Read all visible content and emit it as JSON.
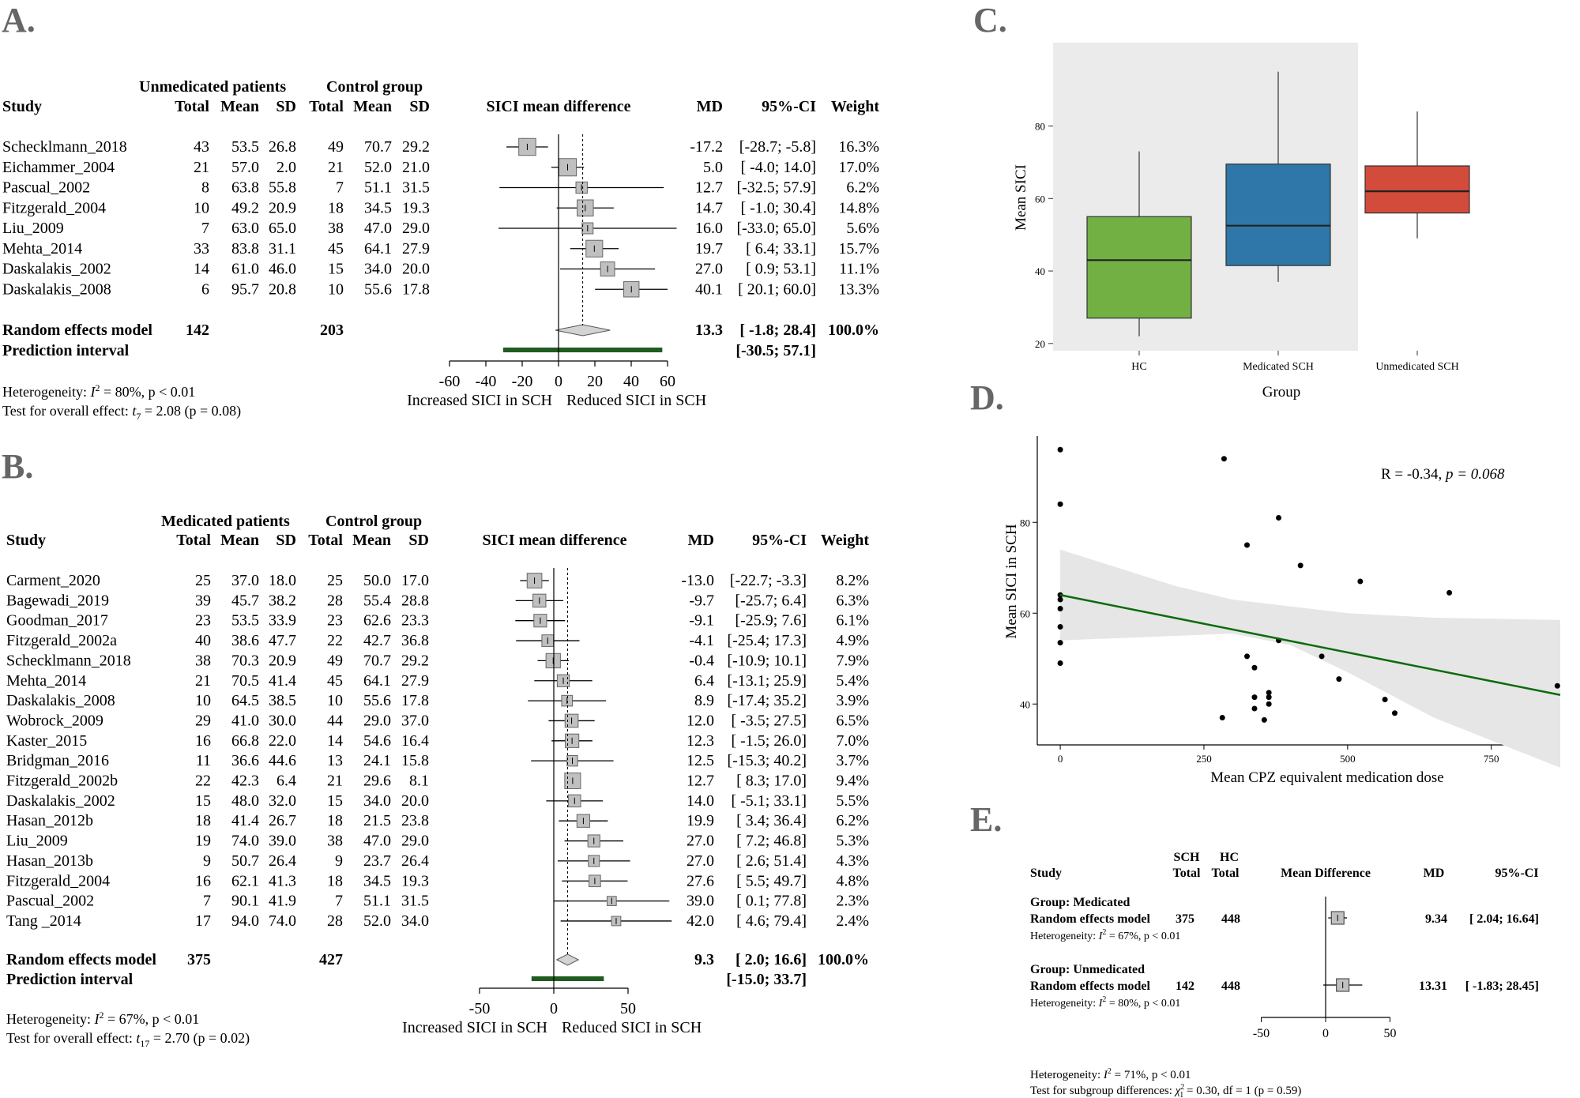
{
  "panel_labels": {
    "a": "A.",
    "b": "B.",
    "c": "C.",
    "d": "D.",
    "e": "E."
  },
  "colors": {
    "square": "#c0c0c0",
    "diamond": "#d3d3d3",
    "pred": "#1f5c1f",
    "hc": "#72b043",
    "medicated": "#2e77a8",
    "unmedicated": "#d24b3b",
    "fit": "#0d6b0d",
    "band": "#e6e6e6",
    "panel_bg": "#ebebeb"
  },
  "chart_data": [
    {
      "type": "forest",
      "panel": "A",
      "header": {
        "group1": "Unmedicated patients",
        "group2": "Control group",
        "study": "Study",
        "total": "Total",
        "mean": "Mean",
        "sd": "SD",
        "plot_title": "SICI mean difference",
        "md": "MD",
        "ci": "95%-CI",
        "weight": "Weight"
      },
      "xlim": [
        -60,
        60
      ],
      "ticks": [
        -60,
        -40,
        -20,
        0,
        20,
        40,
        60
      ],
      "xlabel_left": "Increased SICI in SCH",
      "xlabel_right": "Reduced SICI in SCH",
      "pooled_md": 13.3,
      "studies": [
        {
          "name": "Schecklmann_2018",
          "n1": "43",
          "m1": "53.5",
          "sd1": "26.8",
          "n2": "49",
          "m2": "70.7",
          "sd2": "29.2",
          "md_text": "-17.2",
          "ci_text": "[-28.7; -5.8]",
          "w_text": "16.3%",
          "md": -17.2,
          "lo": -28.7,
          "hi": -5.8,
          "w": 16.3
        },
        {
          "name": "Eichammer_2004",
          "n1": "21",
          "m1": "57.0",
          "sd1": "2.0",
          "n2": "21",
          "m2": "52.0",
          "sd2": "21.0",
          "md_text": "5.0",
          "ci_text": "[ -4.0; 14.0]",
          "w_text": "17.0%",
          "md": 5.0,
          "lo": -4.0,
          "hi": 14.0,
          "w": 17.0
        },
        {
          "name": "Pascual_2002",
          "n1": "8",
          "m1": "63.8",
          "sd1": "55.8",
          "n2": "7",
          "m2": "51.1",
          "sd2": "31.5",
          "md_text": "12.7",
          "ci_text": "[-32.5; 57.9]",
          "w_text": "6.2%",
          "md": 12.7,
          "lo": -32.5,
          "hi": 57.9,
          "w": 6.2
        },
        {
          "name": "Fitzgerald_2004",
          "n1": "10",
          "m1": "49.2",
          "sd1": "20.9",
          "n2": "18",
          "m2": "34.5",
          "sd2": "19.3",
          "md_text": "14.7",
          "ci_text": "[ -1.0; 30.4]",
          "w_text": "14.8%",
          "md": 14.7,
          "lo": -1.0,
          "hi": 30.4,
          "w": 14.8
        },
        {
          "name": "Liu_2009",
          "n1": "7",
          "m1": "63.0",
          "sd1": "65.0",
          "n2": "38",
          "m2": "47.0",
          "sd2": "29.0",
          "md_text": "16.0",
          "ci_text": "[-33.0; 65.0]",
          "w_text": "5.6%",
          "md": 16.0,
          "lo": -33.0,
          "hi": 65.0,
          "w": 5.6
        },
        {
          "name": "Mehta_2014",
          "n1": "33",
          "m1": "83.8",
          "sd1": "31.1",
          "n2": "45",
          "m2": "64.1",
          "sd2": "27.9",
          "md_text": "19.7",
          "ci_text": "[  6.4; 33.1]",
          "w_text": "15.7%",
          "md": 19.7,
          "lo": 6.4,
          "hi": 33.1,
          "w": 15.7
        },
        {
          "name": "Daskalakis_2002",
          "n1": "14",
          "m1": "61.0",
          "sd1": "46.0",
          "n2": "15",
          "m2": "34.0",
          "sd2": "20.0",
          "md_text": "27.0",
          "ci_text": "[  0.9; 53.1]",
          "w_text": "11.1%",
          "md": 27.0,
          "lo": 0.9,
          "hi": 53.1,
          "w": 11.1
        },
        {
          "name": "Daskalakis_2008",
          "n1": "6",
          "m1": "95.7",
          "sd1": "20.8",
          "n2": "10",
          "m2": "55.6",
          "sd2": "17.8",
          "md_text": "40.1",
          "ci_text": "[ 20.1; 60.0]",
          "w_text": "13.3%",
          "md": 40.1,
          "lo": 20.1,
          "hi": 60.0,
          "w": 13.3
        }
      ],
      "summary": {
        "label": "Random effects model",
        "n1": "142",
        "n2": "203",
        "md_text": "13.3",
        "ci_text": "[ -1.8; 28.4]",
        "w_text": "100.0%",
        "md": 13.3,
        "lo": -1.8,
        "hi": 28.4
      },
      "prediction": {
        "label": "Prediction interval",
        "ci_text": "[-30.5; 57.1]",
        "lo": -30.5,
        "hi": 57.1
      },
      "heterogeneity_prefix": "Heterogeneity: ",
      "heterogeneity_rest": " = 80%, p < 0.01",
      "overall_prefix": "Test for overall effect: ",
      "overall_rest": " = 2.08 (p = 0.08)"
    },
    {
      "type": "forest",
      "panel": "B",
      "header": {
        "group1": "Medicated patients",
        "group2": "Control group",
        "study": "Study",
        "total": "Total",
        "mean": "Mean",
        "sd": "SD",
        "plot_title": "SICI mean difference",
        "md": "MD",
        "ci": "95%-CI",
        "weight": "Weight"
      },
      "xlim": [
        -50,
        50
      ],
      "ticks": [
        -50,
        0,
        50
      ],
      "xlabel_left": "Increased SICI in SCH",
      "xlabel_right": "Reduced SICI in SCH",
      "pooled_md": 9.3,
      "studies": [
        {
          "name": "Carment_2020",
          "n1": "25",
          "m1": "37.0",
          "sd1": "18.0",
          "n2": "25",
          "m2": "50.0",
          "sd2": "17.0",
          "md_text": "-13.0",
          "ci_text": "[-22.7; -3.3]",
          "w_text": "8.2%",
          "md": -13.0,
          "lo": -22.7,
          "hi": -3.3,
          "w": 8.2
        },
        {
          "name": "Bagewadi_2019",
          "n1": "39",
          "m1": "45.7",
          "sd1": "38.2",
          "n2": "28",
          "m2": "55.4",
          "sd2": "28.8",
          "md_text": "-9.7",
          "ci_text": "[-25.7;  6.4]",
          "w_text": "6.3%",
          "md": -9.7,
          "lo": -25.7,
          "hi": 6.4,
          "w": 6.3
        },
        {
          "name": "Goodman_2017",
          "n1": "23",
          "m1": "53.5",
          "sd1": "33.9",
          "n2": "23",
          "m2": "62.6",
          "sd2": "23.3",
          "md_text": "-9.1",
          "ci_text": "[-25.9;  7.6]",
          "w_text": "6.1%",
          "md": -9.1,
          "lo": -25.9,
          "hi": 7.6,
          "w": 6.1
        },
        {
          "name": "Fitzgerald_2002a",
          "n1": "40",
          "m1": "38.6",
          "sd1": "47.7",
          "n2": "22",
          "m2": "42.7",
          "sd2": "36.8",
          "md_text": "-4.1",
          "ci_text": "[-25.4; 17.3]",
          "w_text": "4.9%",
          "md": -4.1,
          "lo": -25.4,
          "hi": 17.3,
          "w": 4.9
        },
        {
          "name": "Schecklmann_2018",
          "n1": "38",
          "m1": "70.3",
          "sd1": "20.9",
          "n2": "49",
          "m2": "70.7",
          "sd2": "29.2",
          "md_text": "-0.4",
          "ci_text": "[-10.9; 10.1]",
          "w_text": "7.9%",
          "md": -0.4,
          "lo": -10.9,
          "hi": 10.1,
          "w": 7.9
        },
        {
          "name": "Mehta_2014",
          "n1": "21",
          "m1": "70.5",
          "sd1": "41.4",
          "n2": "45",
          "m2": "64.1",
          "sd2": "27.9",
          "md_text": "6.4",
          "ci_text": "[-13.1; 25.9]",
          "w_text": "5.4%",
          "md": 6.4,
          "lo": -13.1,
          "hi": 25.9,
          "w": 5.4
        },
        {
          "name": "Daskalakis_2008",
          "n1": "10",
          "m1": "64.5",
          "sd1": "38.5",
          "n2": "10",
          "m2": "55.6",
          "sd2": "17.8",
          "md_text": "8.9",
          "ci_text": "[-17.4; 35.2]",
          "w_text": "3.9%",
          "md": 8.9,
          "lo": -17.4,
          "hi": 35.2,
          "w": 3.9
        },
        {
          "name": "Wobrock_2009",
          "n1": "29",
          "m1": "41.0",
          "sd1": "30.0",
          "n2": "44",
          "m2": "29.0",
          "sd2": "37.0",
          "md_text": "12.0",
          "ci_text": "[ -3.5; 27.5]",
          "w_text": "6.5%",
          "md": 12.0,
          "lo": -3.5,
          "hi": 27.5,
          "w": 6.5
        },
        {
          "name": "Kaster_2015",
          "n1": "16",
          "m1": "66.8",
          "sd1": "22.0",
          "n2": "14",
          "m2": "54.6",
          "sd2": "16.4",
          "md_text": "12.3",
          "ci_text": "[ -1.5; 26.0]",
          "w_text": "7.0%",
          "md": 12.3,
          "lo": -1.5,
          "hi": 26.0,
          "w": 7.0
        },
        {
          "name": "Bridgman_2016",
          "n1": "11",
          "m1": "36.6",
          "sd1": "44.6",
          "n2": "13",
          "m2": "24.1",
          "sd2": "15.8",
          "md_text": "12.5",
          "ci_text": "[-15.3; 40.2]",
          "w_text": "3.7%",
          "md": 12.5,
          "lo": -15.3,
          "hi": 40.2,
          "w": 3.7
        },
        {
          "name": "Fitzgerald_2002b",
          "n1": "22",
          "m1": "42.3",
          "sd1": "6.4",
          "n2": "21",
          "m2": "29.6",
          "sd2": "8.1",
          "md_text": "12.7",
          "ci_text": "[  8.3; 17.0]",
          "w_text": "9.4%",
          "md": 12.7,
          "lo": 8.3,
          "hi": 17.0,
          "w": 9.4
        },
        {
          "name": "Daskalakis_2002",
          "n1": "15",
          "m1": "48.0",
          "sd1": "32.0",
          "n2": "15",
          "m2": "34.0",
          "sd2": "20.0",
          "md_text": "14.0",
          "ci_text": "[ -5.1; 33.1]",
          "w_text": "5.5%",
          "md": 14.0,
          "lo": -5.1,
          "hi": 33.1,
          "w": 5.5
        },
        {
          "name": "Hasan_2012b",
          "n1": "18",
          "m1": "41.4",
          "sd1": "26.7",
          "n2": "18",
          "m2": "21.5",
          "sd2": "23.8",
          "md_text": "19.9",
          "ci_text": "[  3.4; 36.4]",
          "w_text": "6.2%",
          "md": 19.9,
          "lo": 3.4,
          "hi": 36.4,
          "w": 6.2
        },
        {
          "name": "Liu_2009",
          "n1": "19",
          "m1": "74.0",
          "sd1": "39.0",
          "n2": "38",
          "m2": "47.0",
          "sd2": "29.0",
          "md_text": "27.0",
          "ci_text": "[  7.2; 46.8]",
          "w_text": "5.3%",
          "md": 27.0,
          "lo": 7.2,
          "hi": 46.8,
          "w": 5.3
        },
        {
          "name": "Hasan_2013b",
          "n1": "9",
          "m1": "50.7",
          "sd1": "26.4",
          "n2": "9",
          "m2": "23.7",
          "sd2": "26.4",
          "md_text": "27.0",
          "ci_text": "[  2.6; 51.4]",
          "w_text": "4.3%",
          "md": 27.0,
          "lo": 2.6,
          "hi": 51.4,
          "w": 4.3
        },
        {
          "name": "Fitzgerald_2004",
          "n1": "16",
          "m1": "62.1",
          "sd1": "41.3",
          "n2": "18",
          "m2": "34.5",
          "sd2": "19.3",
          "md_text": "27.6",
          "ci_text": "[  5.5; 49.7]",
          "w_text": "4.8%",
          "md": 27.6,
          "lo": 5.5,
          "hi": 49.7,
          "w": 4.8
        },
        {
          "name": "Pascual_2002",
          "n1": "7",
          "m1": "90.1",
          "sd1": "41.9",
          "n2": "7",
          "m2": "51.1",
          "sd2": "31.5",
          "md_text": "39.0",
          "ci_text": "[  0.1; 77.8]",
          "w_text": "2.3%",
          "md": 39.0,
          "lo": 0.1,
          "hi": 77.8,
          "w": 2.3
        },
        {
          "name": "Tang _2014",
          "n1": "17",
          "m1": "94.0",
          "sd1": "74.0",
          "n2": "28",
          "m2": "52.0",
          "sd2": "34.0",
          "md_text": "42.0",
          "ci_text": "[  4.6; 79.4]",
          "w_text": "2.4%",
          "md": 42.0,
          "lo": 4.6,
          "hi": 79.4,
          "w": 2.4
        }
      ],
      "summary": {
        "label": "Random effects model",
        "n1": "375",
        "n2": "427",
        "md_text": "9.3",
        "ci_text": "[  2.0; 16.6]",
        "w_text": "100.0%",
        "md": 9.3,
        "lo": 2.0,
        "hi": 16.6
      },
      "prediction": {
        "label": "Prediction interval",
        "ci_text": "[-15.0; 33.7]",
        "lo": -15.0,
        "hi": 33.7
      },
      "heterogeneity_prefix": "Heterogeneity: ",
      "heterogeneity_rest": " = 67%, p < 0.01",
      "overall_prefix": "Test for overall effect: ",
      "overall_rest": " = 2.70 (p = 0.02)"
    },
    {
      "type": "box",
      "panel": "C",
      "xlabel": "Group",
      "ylabel": "Mean SICI",
      "ylim": [
        18,
        103
      ],
      "yticks": [
        20,
        40,
        60,
        80
      ],
      "categories": [
        "HC",
        "Medicated SCH",
        "Unmedicated SCH"
      ],
      "boxes": [
        {
          "name": "HC",
          "min": 22,
          "q1": 27,
          "median": 43,
          "q3": 55,
          "max": 73
        },
        {
          "name": "Medicated SCH",
          "min": 37,
          "q1": 41.5,
          "median": 52.5,
          "q3": 69.5,
          "max": 95
        },
        {
          "name": "Unmedicated SCH",
          "min": 49,
          "q1": 56,
          "median": 62,
          "q3": 69,
          "max": 84
        }
      ]
    },
    {
      "type": "scatter",
      "panel": "D",
      "xlabel": "Mean CPZ equivalent medication dose",
      "ylabel": "Mean SICI in SCH",
      "xlim": [
        -40,
        870
      ],
      "ylim": [
        31,
        99
      ],
      "xticks": [
        0,
        250,
        500,
        750
      ],
      "yticks": [
        40,
        60,
        80
      ],
      "annotation_r": "R = -0.34, ",
      "annotation_p": "p = 0.068",
      "fit": {
        "x0": 0,
        "y0": 64,
        "x1": 870,
        "y1": 42
      },
      "band": {
        "upper": [
          [
            0,
            74
          ],
          [
            200,
            66
          ],
          [
            300,
            63
          ],
          [
            400,
            61.5
          ],
          [
            500,
            60
          ],
          [
            650,
            59
          ],
          [
            870,
            58.5
          ]
        ],
        "lower": [
          [
            0,
            54
          ],
          [
            200,
            55
          ],
          [
            300,
            55.5
          ],
          [
            400,
            53
          ],
          [
            500,
            47
          ],
          [
            650,
            37
          ],
          [
            870,
            26
          ]
        ]
      },
      "points": [
        {
          "x": 0,
          "y": 96
        },
        {
          "x": 0,
          "y": 84
        },
        {
          "x": 0,
          "y": 64
        },
        {
          "x": 0,
          "y": 63
        },
        {
          "x": 0,
          "y": 61
        },
        {
          "x": 0,
          "y": 57
        },
        {
          "x": 0,
          "y": 53.5
        },
        {
          "x": 0,
          "y": 49
        },
        {
          "x": 285,
          "y": 94
        },
        {
          "x": 282,
          "y": 37
        },
        {
          "x": 325,
          "y": 75
        },
        {
          "x": 325,
          "y": 50.5
        },
        {
          "x": 338,
          "y": 48
        },
        {
          "x": 338,
          "y": 41.5
        },
        {
          "x": 338,
          "y": 39
        },
        {
          "x": 355,
          "y": 36.5
        },
        {
          "x": 363,
          "y": 42.5
        },
        {
          "x": 363,
          "y": 41.5
        },
        {
          "x": 363,
          "y": 40
        },
        {
          "x": 380,
          "y": 81
        },
        {
          "x": 380,
          "y": 54
        },
        {
          "x": 418,
          "y": 70.5
        },
        {
          "x": 455,
          "y": 50.5
        },
        {
          "x": 485,
          "y": 45.5
        },
        {
          "x": 522,
          "y": 67
        },
        {
          "x": 565,
          "y": 41
        },
        {
          "x": 582,
          "y": 38
        },
        {
          "x": 677,
          "y": 64.5
        },
        {
          "x": 865,
          "y": 44
        }
      ]
    },
    {
      "type": "forest-subgroup",
      "panel": "E",
      "header": {
        "sch": "SCH",
        "hc": "HC",
        "total": "Total",
        "study": "Study",
        "plot_title": "Mean Difference",
        "md": "MD",
        "ci": "95%-CI"
      },
      "xlim": [
        -50,
        50
      ],
      "ticks": [
        -50,
        0,
        50
      ],
      "groups": [
        {
          "title": "Group: Medicated",
          "model": "Random effects model",
          "n1": "375",
          "n2": "448",
          "md_text": "9.34",
          "ci_text": "[ 2.04; 16.64]",
          "het_prefix": "Heterogeneity: ",
          "het_rest": " = 67%, p < 0.01",
          "md": 9.34,
          "lo": 2.04,
          "hi": 16.64
        },
        {
          "title": "Group: Unmedicated",
          "model": "Random effects model",
          "n1": "142",
          "n2": "448",
          "md_text": "13.31",
          "ci_text": "[ -1.83; 28.45]",
          "het_prefix": "Heterogeneity: ",
          "het_rest": " = 80%, p < 0.01",
          "md": 13.31,
          "lo": -1.83,
          "hi": 28.45
        }
      ],
      "heterogeneity_prefix": "Heterogeneity: ",
      "heterogeneity_rest": " = 71%, p < 0.01",
      "subgroup_prefix": "Test for subgroup differences: ",
      "subgroup_rest": " = 0.30, df = 1 (p = 0.59)"
    }
  ]
}
